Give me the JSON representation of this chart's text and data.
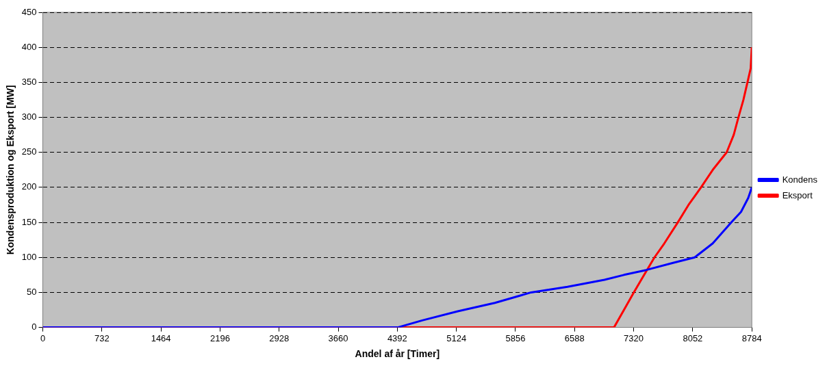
{
  "chart_data": {
    "type": "line",
    "xlabel": "Andel af år [Timer]",
    "ylabel": "Kondensproduktion og Eksport [MW]",
    "xlim": [
      0,
      8784
    ],
    "xticks": [
      0,
      732,
      1464,
      2196,
      2928,
      3660,
      4392,
      5124,
      5856,
      6588,
      7320,
      8052,
      8784
    ],
    "ylim": [
      0,
      450
    ],
    "yticks": [
      0,
      50,
      100,
      150,
      200,
      250,
      300,
      350,
      400,
      450
    ],
    "grid": "y",
    "legend": "right",
    "marker": "none",
    "line_style": "solid",
    "series": [
      {
        "name": "Kondens",
        "color": "#0000ff",
        "x": [
          0,
          4397,
          4700,
          5142,
          5600,
          6050,
          6500,
          6958,
          7200,
          7476,
          7800,
          8076,
          8300,
          8530,
          8650,
          8740,
          8784
        ],
        "values": [
          0,
          0,
          10,
          23,
          35,
          50,
          58,
          68,
          75,
          82,
          92,
          100,
          120,
          150,
          165,
          185,
          200
        ]
      },
      {
        "name": "Eksport",
        "color": "#ff0000",
        "x": [
          0,
          7077,
          7200,
          7322,
          7450,
          7578,
          7700,
          7867,
          8000,
          8155,
          8300,
          8472,
          8560,
          8618,
          8680,
          8730,
          8770,
          8784
        ],
        "values": [
          0,
          0,
          25,
          50,
          75,
          100,
          120,
          150,
          175,
          200,
          225,
          250,
          275,
          300,
          325,
          350,
          370,
          400
        ]
      }
    ]
  }
}
